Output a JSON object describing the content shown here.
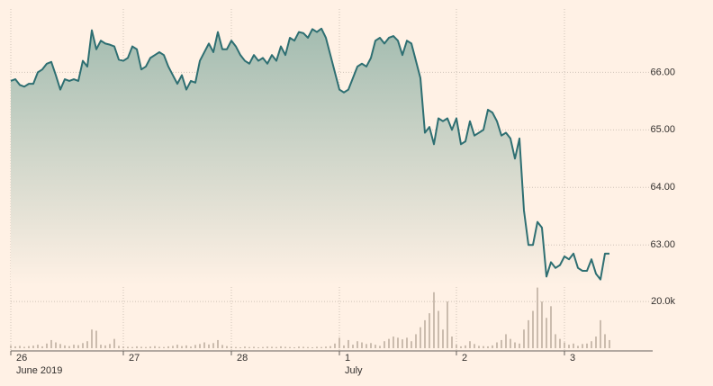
{
  "chart_data": {
    "type": "line",
    "color": "#2e6f72",
    "categories": [
      "26",
      null,
      null,
      null,
      null,
      null,
      null,
      null,
      null,
      null,
      null,
      null,
      null,
      null,
      null,
      null,
      null,
      null,
      null,
      null,
      null,
      null,
      null,
      null,
      null,
      "27",
      null,
      null,
      null,
      null,
      null,
      null,
      null,
      null,
      null,
      null,
      null,
      null,
      null,
      null,
      null,
      null,
      null,
      null,
      null,
      null,
      null,
      null,
      null,
      "28",
      null,
      null,
      null,
      null,
      null,
      null,
      null,
      null,
      null,
      null,
      null,
      null,
      null,
      null,
      null,
      null,
      null,
      null,
      null,
      null,
      null,
      null,
      null,
      "1",
      null,
      null,
      null,
      null,
      null,
      null,
      null,
      null,
      null,
      null,
      null,
      null,
      null,
      null,
      null,
      null,
      null,
      null,
      null,
      null,
      null,
      null,
      null,
      null,
      null,
      "2",
      null,
      null,
      null,
      null,
      null,
      null,
      null,
      null,
      null,
      null,
      null,
      null,
      null,
      null,
      null,
      null,
      null,
      null,
      null,
      null,
      null,
      null,
      null,
      "3",
      null,
      null,
      null,
      null,
      null,
      null,
      null,
      null,
      null,
      null
    ],
    "sublabels": [
      "June 2019",
      null,
      null,
      null,
      null,
      null,
      null,
      null,
      null,
      null,
      null,
      null,
      null,
      null,
      null,
      null,
      null,
      null,
      null,
      null,
      null,
      null,
      null,
      null,
      null,
      null,
      null,
      null,
      null,
      null,
      null,
      null,
      null,
      null,
      null,
      null,
      null,
      null,
      null,
      null,
      null,
      null,
      null,
      null,
      null,
      null,
      null,
      null,
      null,
      null,
      null,
      null,
      null,
      null,
      null,
      null,
      null,
      null,
      null,
      null,
      null,
      null,
      null,
      null,
      null,
      null,
      null,
      null,
      null,
      null,
      null,
      null,
      null,
      "July",
      null,
      null,
      null,
      null,
      null,
      null,
      null,
      null,
      null,
      null,
      null,
      null,
      null,
      null,
      null,
      null,
      null,
      null,
      null,
      null,
      null,
      null,
      null,
      null,
      null,
      null,
      null,
      null,
      null,
      null,
      null,
      null,
      null,
      null,
      null,
      null,
      null,
      null,
      null,
      null,
      null,
      null,
      null,
      null,
      null,
      null,
      null,
      null,
      null,
      null,
      null,
      null,
      null,
      null,
      null,
      null,
      null,
      null,
      null,
      null
    ],
    "values": [
      65.85,
      65.88,
      65.78,
      65.75,
      65.8,
      65.8,
      66.0,
      66.05,
      66.15,
      66.18,
      65.95,
      65.7,
      65.88,
      65.85,
      65.88,
      65.85,
      66.2,
      66.1,
      66.73,
      66.4,
      66.55,
      66.5,
      66.48,
      66.45,
      66.22,
      66.2,
      66.25,
      66.45,
      66.4,
      66.05,
      66.1,
      66.25,
      66.3,
      66.35,
      66.3,
      66.1,
      65.95,
      65.8,
      65.95,
      65.7,
      65.85,
      65.82,
      66.2,
      66.35,
      66.5,
      66.35,
      66.7,
      66.4,
      66.4,
      66.55,
      66.45,
      66.3,
      66.2,
      66.15,
      66.3,
      66.2,
      66.25,
      66.15,
      66.3,
      66.2,
      66.45,
      66.3,
      66.6,
      66.55,
      66.7,
      66.68,
      66.6,
      66.75,
      66.7,
      66.76,
      66.6,
      66.3,
      66.0,
      65.7,
      65.65,
      65.7,
      65.9,
      66.1,
      66.15,
      66.1,
      66.25,
      66.55,
      66.6,
      66.5,
      66.6,
      66.63,
      66.55,
      66.3,
      66.55,
      66.5,
      66.2,
      65.9,
      64.95,
      65.05,
      64.75,
      65.2,
      65.15,
      65.2,
      65.0,
      65.2,
      64.75,
      64.8,
      65.15,
      64.9,
      64.95,
      65.0,
      65.35,
      65.3,
      65.15,
      64.9,
      64.95,
      64.85,
      64.5,
      64.85,
      63.6,
      63.0,
      63.0,
      63.4,
      63.3,
      62.45,
      62.7,
      62.6,
      62.65,
      62.8,
      62.75,
      62.85,
      62.6,
      62.55,
      62.55,
      62.75,
      62.5,
      62.4,
      62.85,
      62.85
    ],
    "ylim": [
      62.3,
      67.1
    ],
    "yticks": [
      {
        "value": 63,
        "label": "63.00"
      },
      {
        "value": 64,
        "label": "64.00"
      },
      {
        "value": 65,
        "label": "65.00"
      },
      {
        "value": 66,
        "label": "66.00"
      }
    ],
    "grid": true,
    "volume": {
      "type": "bar",
      "color": "#cbbcae",
      "values": [
        1200,
        800,
        1000,
        600,
        900,
        1100,
        1500,
        800,
        2000,
        3500,
        2500,
        1800,
        1200,
        900,
        1500,
        1300,
        2200,
        3000,
        8000,
        7500,
        1500,
        1200,
        1800,
        4000,
        1000,
        700,
        600,
        500,
        800,
        600,
        500,
        700,
        900,
        600,
        500,
        800,
        1000,
        1500,
        900,
        1200,
        700,
        1400,
        1800,
        2500,
        1600,
        2200,
        3500,
        1400,
        900,
        600,
        500,
        400,
        700,
        500,
        600,
        400,
        500,
        700,
        600,
        500,
        800,
        600,
        500,
        400,
        700,
        600,
        500,
        400,
        600,
        500,
        700,
        900,
        2000,
        4500,
        1200,
        3500,
        1500,
        3000,
        2500,
        1800,
        2200,
        1500,
        1000,
        3000,
        4000,
        5000,
        4500,
        3800,
        4500,
        3000,
        6000,
        9000,
        12000,
        15000,
        24000,
        16000,
        8000,
        20000,
        5000,
        1500,
        800,
        1200,
        3000,
        1800,
        1000,
        900,
        800,
        1200,
        2500,
        3500,
        6000,
        4000,
        2500,
        2000,
        8000,
        12000,
        16000,
        26000,
        20000,
        13000,
        18000,
        6000,
        4000,
        2500,
        1500,
        2000,
        1000,
        1800,
        2000,
        3000,
        5000,
        12000,
        6000,
        3500
      ],
      "ylim": [
        0,
        27000
      ],
      "yticks": [
        {
          "value": 20000,
          "label": "20.0k"
        }
      ]
    }
  }
}
